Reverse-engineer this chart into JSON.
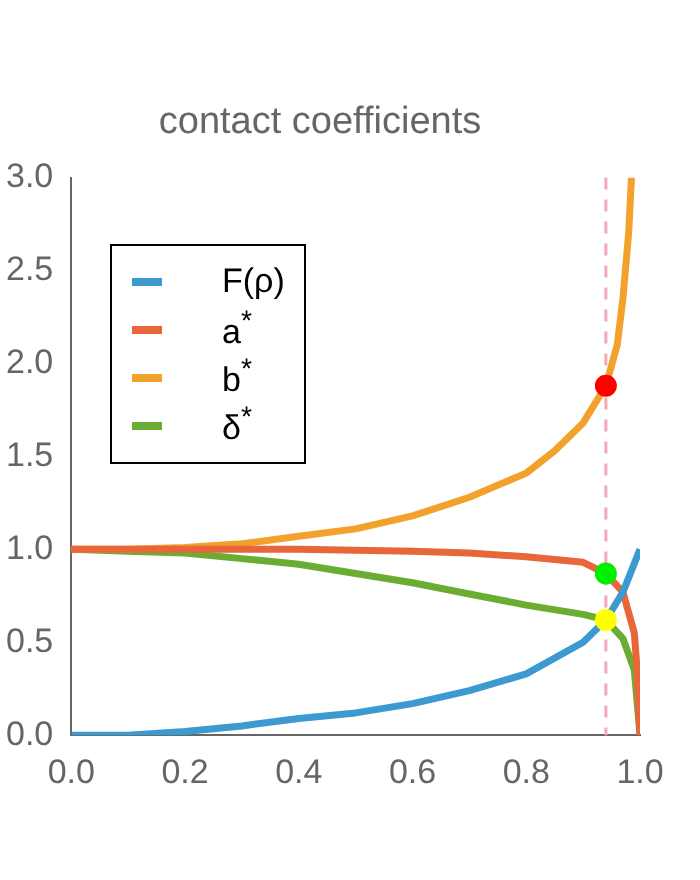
{
  "chart_data": {
    "type": "line",
    "title": "contact coefficients",
    "xlim": [
      0,
      1
    ],
    "ylim": [
      0,
      3
    ],
    "xticks": [
      {
        "value": 0,
        "label": "0.0"
      },
      {
        "value": 0.2,
        "label": "0.2"
      },
      {
        "value": 0.4,
        "label": "0.4"
      },
      {
        "value": 0.6,
        "label": "0.6"
      },
      {
        "value": 0.8,
        "label": "0.8"
      },
      {
        "value": 1,
        "label": "1.0"
      }
    ],
    "yticks": [
      {
        "value": 0,
        "label": "0.0"
      },
      {
        "value": 0.5,
        "label": "0.5"
      },
      {
        "value": 1,
        "label": "1.0"
      },
      {
        "value": 1.5,
        "label": "1.5"
      },
      {
        "value": 2,
        "label": "2.0"
      },
      {
        "value": 2.5,
        "label": "2.5"
      },
      {
        "value": 3,
        "label": "3.0"
      }
    ],
    "grid": false,
    "legend": "top left",
    "marker": "none",
    "line_style": "solid",
    "series": [
      {
        "name": "F(ρ)",
        "color": "#3d9ad1",
        "x": [
          0,
          0.1,
          0.2,
          0.3,
          0.4,
          0.5,
          0.6,
          0.7,
          0.8,
          0.9,
          0.94,
          0.97,
          1
        ],
        "values": [
          0,
          0,
          0.02,
          0.05,
          0.09,
          0.12,
          0.17,
          0.24,
          0.33,
          0.5,
          0.62,
          0.77,
          1
        ]
      },
      {
        "name": "a$^{*}$",
        "color": "#e8663a",
        "x": [
          0,
          0.2,
          0.4,
          0.6,
          0.7,
          0.8,
          0.9,
          0.94,
          0.97,
          0.99,
          0.995,
          1
        ],
        "values": [
          1,
          1,
          1,
          0.99,
          0.98,
          0.96,
          0.93,
          0.87,
          0.77,
          0.55,
          0.35,
          0
        ]
      },
      {
        "name": "b$^{*}$",
        "color": "#f2a22c",
        "x": [
          0,
          0.1,
          0.2,
          0.3,
          0.4,
          0.5,
          0.6,
          0.7,
          0.8,
          0.85,
          0.9,
          0.94,
          0.96,
          0.97,
          0.98,
          0.985
        ],
        "values": [
          1,
          1,
          1.01,
          1.03,
          1.07,
          1.11,
          1.18,
          1.28,
          1.41,
          1.53,
          1.68,
          1.88,
          2.1,
          2.35,
          2.7,
          3
        ]
      },
      {
        "name": "δ$^{*}$",
        "color": "#6aad32",
        "x": [
          0,
          0.1,
          0.2,
          0.3,
          0.4,
          0.5,
          0.6,
          0.7,
          0.8,
          0.9,
          0.94,
          0.97,
          0.99,
          1
        ],
        "values": [
          1,
          0.99,
          0.98,
          0.95,
          0.92,
          0.87,
          0.82,
          0.76,
          0.7,
          0.65,
          0.62,
          0.52,
          0.35,
          0
        ]
      },
      {
        "type": "scatter",
        "marker": "circle",
        "color": "#ff0000",
        "x": [
          0.94
        ],
        "values": [
          1.88
        ]
      },
      {
        "type": "scatter",
        "marker": "circle",
        "color": "#00ee00",
        "x": [
          0.94
        ],
        "values": [
          0.87
        ]
      },
      {
        "type": "scatter",
        "marker": "circle",
        "color": "#ffff00",
        "x": [
          0.94
        ],
        "values": [
          0.62
        ]
      }
    ],
    "ref_lines": [
      {
        "axis": "x",
        "value": 0.94,
        "color": "#f4a8b4",
        "line_style": "dashed"
      }
    ]
  }
}
